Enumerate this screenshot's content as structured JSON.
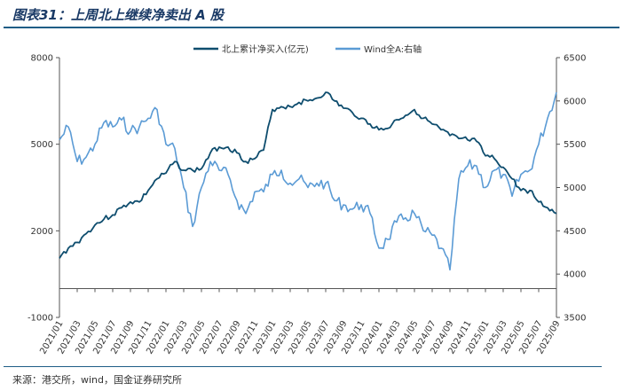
{
  "header": {
    "title": "图表31：上周北上继续净卖出 A 股"
  },
  "footer": {
    "source": "来源：港交所，wind，国金证券研究所"
  },
  "chart_data": {
    "type": "line",
    "title": "图表31：上周北上继续净卖出 A 股",
    "x_labels": [
      "2021/01",
      "2021/03",
      "2021/05",
      "2021/07",
      "2021/09",
      "2021/11",
      "2022/01",
      "2022/03",
      "2022/05",
      "2022/07",
      "2022/09",
      "2022/11",
      "2023/01",
      "2023/03",
      "2023/05",
      "2023/07",
      "2023/09",
      "2023/11",
      "2024/01",
      "2024/03",
      "2024/05",
      "2024/07",
      "2024/09",
      "2024/11",
      "2025/01",
      "2025/03",
      "2025/05",
      "2025/07",
      "2025/09"
    ],
    "y_left": {
      "ticks": [
        "8000",
        "5000",
        "2000",
        "-1000"
      ],
      "lim": [
        -1000,
        8000
      ]
    },
    "y_right": {
      "ticks": [
        "6500",
        "6000",
        "5500",
        "5000",
        "4500",
        "4000",
        "3500"
      ],
      "lim": [
        3500,
        6500
      ]
    },
    "legend_position": "top",
    "colors": {
      "north": "#0e4d6e",
      "wind": "#5b9bd5"
    },
    "series": [
      {
        "name": "北上累计净买入(亿元)",
        "axis": "left",
        "points": [
          [
            "2021/01",
            1050
          ],
          [
            "2021/02",
            1400
          ],
          [
            "2021/03",
            1600
          ],
          [
            "2021/04",
            1900
          ],
          [
            "2021/05",
            2200
          ],
          [
            "2021/06",
            2400
          ],
          [
            "2021/07",
            2550
          ],
          [
            "2021/08",
            2800
          ],
          [
            "2021/09",
            3000
          ],
          [
            "2021/10",
            3000
          ],
          [
            "2021/11",
            3400
          ],
          [
            "2021/12",
            3800
          ],
          [
            "2022/01",
            4000
          ],
          [
            "2022/02",
            4400
          ],
          [
            "2022/03",
            4100
          ],
          [
            "2022/04",
            4100
          ],
          [
            "2022/05",
            4150
          ],
          [
            "2022/06",
            4700
          ],
          [
            "2022/07",
            4900
          ],
          [
            "2022/08",
            4900
          ],
          [
            "2022/09",
            4700
          ],
          [
            "2022/10",
            4400
          ],
          [
            "2022/11",
            4500
          ],
          [
            "2022/12",
            4800
          ],
          [
            "2023/01",
            6200
          ],
          [
            "2023/02",
            6300
          ],
          [
            "2023/03",
            6300
          ],
          [
            "2023/04",
            6450
          ],
          [
            "2023/05",
            6500
          ],
          [
            "2023/06",
            6600
          ],
          [
            "2023/07",
            6800
          ],
          [
            "2023/08",
            6500
          ],
          [
            "2023/09",
            6250
          ],
          [
            "2023/10",
            6100
          ],
          [
            "2023/11",
            5900
          ],
          [
            "2023/12",
            5700
          ],
          [
            "2024/01",
            5500
          ],
          [
            "2024/02",
            5550
          ],
          [
            "2024/03",
            5850
          ],
          [
            "2024/04",
            6000
          ],
          [
            "2024/05",
            6200
          ],
          [
            "2024/06",
            5900
          ],
          [
            "2024/07",
            5700
          ],
          [
            "2024/08",
            5500
          ],
          [
            "2024/09",
            5300
          ],
          [
            "2024/10",
            5200
          ],
          [
            "2024/11",
            5150
          ],
          [
            "2024/12",
            5100
          ],
          [
            "2025/01",
            4600
          ],
          [
            "2025/02",
            4500
          ],
          [
            "2025/03",
            4200
          ],
          [
            "2025/04",
            3800
          ],
          [
            "2025/05",
            3400
          ],
          [
            "2025/06",
            3400
          ],
          [
            "2025/07",
            3000
          ],
          [
            "2025/08",
            2800
          ],
          [
            "2025/09",
            2600
          ]
        ]
      },
      {
        "name": "Wind全A:右轴",
        "axis": "right",
        "points": [
          [
            "2021/01",
            5550
          ],
          [
            "2021/02",
            5700
          ],
          [
            "2021/03",
            5300
          ],
          [
            "2021/04",
            5350
          ],
          [
            "2021/05",
            5500
          ],
          [
            "2021/06",
            5750
          ],
          [
            "2021/07",
            5700
          ],
          [
            "2021/08",
            5780
          ],
          [
            "2021/09",
            5650
          ],
          [
            "2021/10",
            5700
          ],
          [
            "2021/11",
            5800
          ],
          [
            "2021/12",
            5900
          ],
          [
            "2022/01",
            5500
          ],
          [
            "2022/02",
            5450
          ],
          [
            "2022/03",
            5000
          ],
          [
            "2022/04",
            4550
          ],
          [
            "2022/05",
            5000
          ],
          [
            "2022/06",
            5300
          ],
          [
            "2022/07",
            5200
          ],
          [
            "2022/08",
            5150
          ],
          [
            "2022/09",
            4850
          ],
          [
            "2022/10",
            4700
          ],
          [
            "2022/11",
            4950
          ],
          [
            "2022/12",
            4950
          ],
          [
            "2023/01",
            5150
          ],
          [
            "2023/02",
            5200
          ],
          [
            "2023/03",
            5050
          ],
          [
            "2023/04",
            5100
          ],
          [
            "2023/05",
            5000
          ],
          [
            "2023/06",
            5050
          ],
          [
            "2023/07",
            5050
          ],
          [
            "2023/08",
            4850
          ],
          [
            "2023/09",
            4800
          ],
          [
            "2023/10",
            4750
          ],
          [
            "2023/11",
            4800
          ],
          [
            "2023/12",
            4700
          ],
          [
            "2024/01",
            4300
          ],
          [
            "2024/02",
            4400
          ],
          [
            "2024/03",
            4600
          ],
          [
            "2024/04",
            4650
          ],
          [
            "2024/05",
            4700
          ],
          [
            "2024/06",
            4500
          ],
          [
            "2024/07",
            4450
          ],
          [
            "2024/08",
            4300
          ],
          [
            "2024/09",
            4050
          ],
          [
            "2024/10",
            5100
          ],
          [
            "2024/11",
            5250
          ],
          [
            "2024/12",
            5250
          ],
          [
            "2025/01",
            5000
          ],
          [
            "2025/02",
            5200
          ],
          [
            "2025/03",
            5150
          ],
          [
            "2025/04",
            4900
          ],
          [
            "2025/05",
            5150
          ],
          [
            "2025/06",
            5200
          ],
          [
            "2025/07",
            5500
          ],
          [
            "2025/08",
            5800
          ],
          [
            "2025/09",
            6100
          ]
        ]
      }
    ]
  }
}
